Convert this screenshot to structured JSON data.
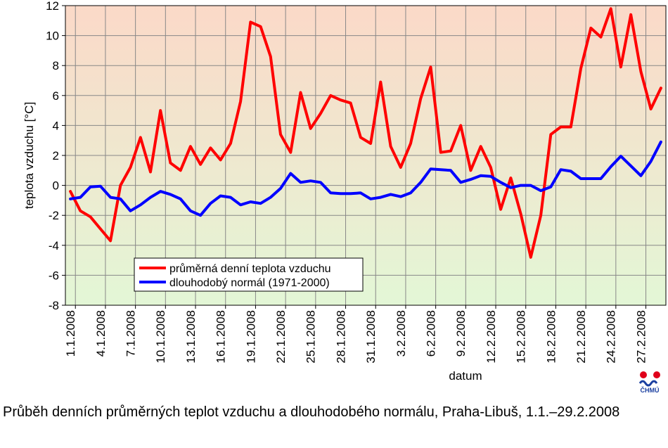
{
  "chart_data": {
    "type": "line",
    "xlabel": "datum",
    "ylabel": "teplota vzduchu [°C]",
    "ylim": [
      -8,
      12
    ],
    "yticks": [
      -8,
      -6,
      -4,
      -2,
      0,
      2,
      4,
      6,
      8,
      10,
      12
    ],
    "x": [
      "1.1.2008",
      "2.1.2008",
      "3.1.2008",
      "4.1.2008",
      "5.1.2008",
      "6.1.2008",
      "7.1.2008",
      "8.1.2008",
      "9.1.2008",
      "10.1.2008",
      "11.1.2008",
      "12.1.2008",
      "13.1.2008",
      "14.1.2008",
      "15.1.2008",
      "16.1.2008",
      "17.1.2008",
      "18.1.2008",
      "19.1.2008",
      "20.1.2008",
      "21.1.2008",
      "22.1.2008",
      "23.1.2008",
      "24.1.2008",
      "25.1.2008",
      "26.1.2008",
      "27.1.2008",
      "28.1.2008",
      "29.1.2008",
      "30.1.2008",
      "31.1.2008",
      "1.2.2008",
      "2.2.2008",
      "3.2.2008",
      "4.2.2008",
      "5.2.2008",
      "6.2.2008",
      "7.2.2008",
      "8.2.2008",
      "9.2.2008",
      "10.2.2008",
      "11.2.2008",
      "12.2.2008",
      "13.2.2008",
      "14.2.2008",
      "15.2.2008",
      "16.2.2008",
      "17.2.2008",
      "18.2.2008",
      "19.2.2008",
      "20.2.2008",
      "21.2.2008",
      "22.2.2008",
      "23.2.2008",
      "24.2.2008",
      "25.2.2008",
      "26.2.2008",
      "27.2.2008",
      "28.2.2008",
      "29.2.2008"
    ],
    "xtick_labels": [
      "1.1.2008",
      "4.1.2008",
      "7.1.2008",
      "10.1.2008",
      "13.1.2008",
      "16.1.2008",
      "19.1.2008",
      "22.1.2008",
      "25.1.2008",
      "28.1.2008",
      "31.1.2008",
      "3.2.2008",
      "6.2.2008",
      "9.2.2008",
      "12.2.2008",
      "15.2.2008",
      "18.2.2008",
      "21.2.2008",
      "24.2.2008",
      "27.2.2008"
    ],
    "xtick_every": 3,
    "grid": true,
    "legend_position": "lower-left",
    "series": [
      {
        "name": "průměrná denní teplota vzduchu",
        "color": "#ff0000",
        "values": [
          -0.4,
          -1.7,
          -2.1,
          -2.9,
          -3.7,
          0,
          1.2,
          3.2,
          0.9,
          5,
          1.5,
          1,
          2.6,
          1.4,
          2.5,
          1.7,
          2.8,
          5.6,
          10.9,
          10.6,
          8.6,
          3.4,
          2.2,
          6.2,
          3.8,
          4.8,
          6,
          5.7,
          5.5,
          3.2,
          2.8,
          6.9,
          2.6,
          1.2,
          2.8,
          5.8,
          7.9,
          2.2,
          2.3,
          4,
          1,
          2.6,
          1.2,
          -1.6,
          0.5,
          -1.9,
          -4.8,
          -2,
          3.4,
          3.9,
          3.9,
          7.8,
          10.5,
          9.9,
          11.8,
          7.9,
          11.4,
          7.6,
          5.1,
          6.5
        ]
      },
      {
        "name": "dlouhodobý normál (1971-2000)",
        "color": "#0000ff",
        "values": [
          -0.9,
          -0.8,
          -0.1,
          -0.05,
          -0.8,
          -0.9,
          -1.7,
          -1.3,
          -0.8,
          -0.4,
          -0.6,
          -0.9,
          -1.7,
          -2,
          -1.2,
          -0.7,
          -0.8,
          -1.3,
          -1.1,
          -1.2,
          -0.8,
          -0.2,
          0.8,
          0.2,
          0.3,
          0.2,
          -0.5,
          -0.55,
          -0.55,
          -0.5,
          -0.9,
          -0.8,
          -0.6,
          -0.75,
          -0.5,
          0.2,
          1.1,
          1.05,
          1,
          0.2,
          0.4,
          0.65,
          0.6,
          0.2,
          -0.15,
          0,
          0,
          -0.35,
          -0.1,
          1.05,
          0.95,
          0.45,
          0.45,
          0.45,
          1.25,
          1.95,
          1.3,
          0.65,
          1.6,
          2.9
        ]
      }
    ]
  },
  "caption": "Průběh denních průměrných teplot vzduchu a dlouhodobého normálu, Praha-Libuš, 1.1.–29.2.2008",
  "logo": {
    "text": "ČHMÚ",
    "colors": [
      "#e0001a",
      "#1a3fa0"
    ]
  },
  "plot_gradient": {
    "top": "#fbd9c8",
    "bottom": "#e3f7d6"
  },
  "grid_color": "#888888"
}
